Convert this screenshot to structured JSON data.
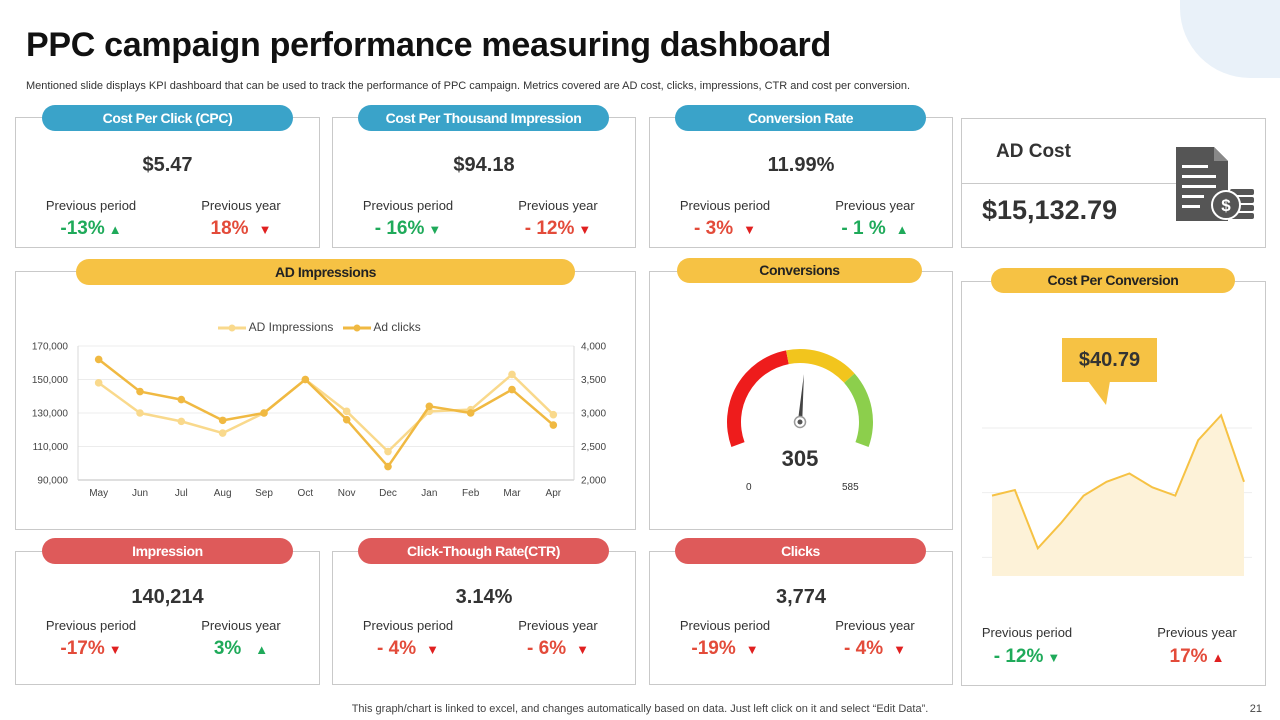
{
  "header": {
    "title": "PPC campaign performance measuring dashboard",
    "subtitle": "Mentioned slide displays KPI dashboard that can be used to track the performance of PPC campaign. Metrics covered are AD cost, clicks, impressions, CTR and cost per conversion."
  },
  "kpis": {
    "cpc": {
      "label": "Cost Per Click (CPC)",
      "value": "$5.47",
      "prev_period_label": "Previous period",
      "prev_period": "-13%",
      "prev_year_label": "Previous year",
      "prev_year": "18%"
    },
    "cpm": {
      "label": "Cost Per Thousand Impression",
      "value": "$94.18",
      "prev_period_label": "Previous period",
      "prev_period": "- 16%",
      "prev_year_label": "Previous year",
      "prev_year": "- 12%"
    },
    "conv_rate": {
      "label": "Conversion Rate",
      "value": "11.99%",
      "prev_period_label": "Previous period",
      "prev_period": "- 3%",
      "prev_year_label": "Previous year",
      "prev_year": "- 1 %"
    },
    "impression": {
      "label": "Impression",
      "value": "140,214",
      "prev_period_label": "Previous period",
      "prev_period": "-17%",
      "prev_year_label": "Previous year",
      "prev_year": "3%"
    },
    "ctr": {
      "label": "Click-Though Rate(CTR)",
      "value": "3.14%",
      "prev_period_label": "Previous period",
      "prev_period": "- 4%",
      "prev_year_label": "Previous year",
      "prev_year": "- 6%"
    },
    "clicks": {
      "label": "Clicks",
      "value": "3,774",
      "prev_period_label": "Previous period",
      "prev_period": "-19%",
      "prev_year_label": "Previous year",
      "prev_year": "- 4%"
    }
  },
  "ad_cost": {
    "label": "AD Cost",
    "value": "$15,132.79",
    "icon": "invoice-dollar-icon"
  },
  "impressions_panel": {
    "label": "AD Impressions"
  },
  "conversions_panel": {
    "label": "Conversions",
    "value": "305",
    "min": "0",
    "max": "585"
  },
  "cost_per_conversion": {
    "label": "Cost Per Conversion",
    "callout": "$40.79",
    "prev_period_label": "Previous period",
    "prev_period": "- 12%",
    "prev_year_label": "Previous year",
    "prev_year": "17%"
  },
  "colors": {
    "blue": "#3aa3c9",
    "yellow": "#f6c244",
    "red": "#de5a5a",
    "green": "#1faa5a"
  },
  "chart_data": [
    {
      "type": "line",
      "categories": [
        "May",
        "Jun",
        "Jul",
        "Aug",
        "Sep",
        "Oct",
        "Nov",
        "Dec",
        "Jan",
        "Feb",
        "Mar",
        "Apr"
      ],
      "series": [
        {
          "name": "AD Impressions",
          "axis": "left",
          "color": "#f9d98c",
          "values": [
            148000,
            130000,
            125000,
            118000,
            130000,
            150000,
            131000,
            107000,
            131000,
            132000,
            153000,
            129000
          ]
        },
        {
          "name": "Ad clicks",
          "axis": "right",
          "color": "#f0b942",
          "values": [
            3800,
            3320,
            3200,
            2890,
            3000,
            3500,
            2900,
            2200,
            3100,
            3000,
            3350,
            2820
          ]
        }
      ],
      "ylim_left": [
        90000,
        170000
      ],
      "ylim_right": [
        2000,
        4000
      ],
      "yticks_left": [
        "170,000",
        "150,000",
        "130,000",
        "110,000",
        "90,000"
      ],
      "yticks_right": [
        "4,000",
        "3,500",
        "3,000",
        "2,500",
        "2,000"
      ],
      "legend": "top"
    },
    {
      "type": "gauge",
      "value": 305,
      "min": 0,
      "max": 585,
      "bands": [
        {
          "to": 0.45,
          "color": "#ee1c1c"
        },
        {
          "to": 0.72,
          "color": "#f2c51d"
        },
        {
          "to": 1.0,
          "color": "#8ccf4c"
        }
      ]
    },
    {
      "type": "area",
      "values": [
        59,
        61,
        40,
        49,
        59,
        64,
        67,
        62,
        59,
        79,
        88,
        64
      ],
      "ylim": [
        30,
        100
      ],
      "color": "#f6c244",
      "fill": "#fdf2d8"
    }
  ],
  "footer": {
    "note": "This graph/chart is linked to excel,  and changes automatically based on data. Just left click on it and select “Edit Data”.",
    "page": "21"
  }
}
